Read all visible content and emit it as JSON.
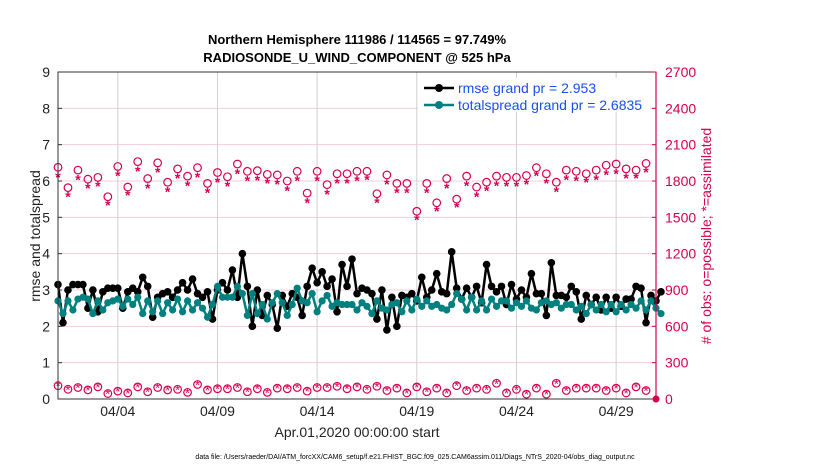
{
  "chart_data": {
    "type": "line",
    "title": [
      "Northern Hemisphere 111986 / 114565 = 97.749%",
      "RADIOSONDE_U_WIND_COMPONENT @ 525 hPa"
    ],
    "xlabel": "Apr.01,2020 00:00:00 start",
    "ylabel": "rmse and totalspread",
    "ylabel_right": "# of obs: o=possible; *=assimilated",
    "footer": "data file: /Users/raeder/DAI/ATM_forcXX/CAM6_setup/f.e21.FHIST_BGC.f09_025.CAM6assim.011/Diags_NTrS_2020-04/obs_diag_output.nc",
    "xlim": [
      0,
      30
    ],
    "ylim": [
      0,
      9
    ],
    "ylim_right": [
      0,
      2700
    ],
    "x_ticks": [
      3,
      8,
      13,
      18,
      23,
      28
    ],
    "x_tick_labels": [
      "04/04",
      "04/09",
      "04/14",
      "04/19",
      "04/24",
      "04/29"
    ],
    "y_ticks": [
      0,
      1,
      2,
      3,
      4,
      5,
      6,
      7,
      8,
      9
    ],
    "y_ticks_right": [
      0,
      300,
      600,
      900,
      1200,
      1500,
      1800,
      2100,
      2400,
      2700
    ],
    "legend_position": "top-right",
    "colors": {
      "rmse": "#000000",
      "spread": "#00807f",
      "obs": "#d6004f",
      "legend_text": "#1a4ff0",
      "grid_h": "#f4cddb",
      "grid_v": "#d0d0d0"
    },
    "series": [
      {
        "name": "rmse grand pr = 2.953",
        "axis": "left",
        "x_step_days": 0.25,
        "values": [
          3.15,
          2.1,
          3.0,
          3.15,
          3.15,
          3.15,
          2.5,
          3.0,
          2.4,
          2.95,
          3.05,
          3.05,
          3.05,
          2.5,
          2.95,
          3.05,
          2.95,
          3.35,
          3.1,
          2.25,
          2.8,
          2.9,
          2.95,
          2.8,
          3.0,
          3.2,
          3.0,
          3.3,
          2.9,
          2.8,
          2.95,
          2.2,
          3.0,
          3.2,
          3.0,
          3.55,
          2.8,
          4.0,
          3.1,
          2.0,
          3.0,
          2.3,
          2.85,
          2.6,
          1.95,
          2.85,
          2.55,
          2.9,
          2.8,
          2.3,
          3.1,
          3.6,
          3.2,
          3.5,
          3.1,
          3.3,
          2.4,
          3.7,
          3.1,
          3.85,
          2.9,
          3.05,
          3.0,
          2.9,
          2.2,
          3.0,
          1.9,
          2.8,
          2.0,
          2.85,
          2.8,
          2.9,
          2.7,
          3.35,
          2.8,
          3.0,
          3.45,
          2.95,
          2.9,
          4.05,
          3.05,
          2.75,
          3.05,
          2.8,
          3.1,
          2.65,
          3.7,
          3.1,
          2.95,
          3.1,
          2.6,
          3.15,
          2.75,
          3.0,
          2.8,
          3.45,
          2.9,
          2.9,
          2.3,
          3.75,
          2.85,
          2.85,
          2.8,
          3.1,
          2.95,
          2.2,
          2.85,
          2.6,
          2.8,
          2.45,
          2.8,
          2.5,
          2.8,
          2.55,
          2.75,
          2.75,
          3.1,
          3.05,
          2.1,
          2.85,
          2.7,
          2.95
        ]
      },
      {
        "name": "totalspread grand pr = 2.6835",
        "axis": "left",
        "x_step_days": 0.25,
        "values": [
          2.7,
          2.35,
          2.7,
          2.45,
          2.75,
          2.8,
          2.75,
          2.35,
          2.7,
          2.45,
          2.65,
          2.7,
          2.75,
          2.55,
          2.75,
          2.6,
          2.8,
          2.35,
          2.7,
          2.4,
          2.7,
          2.35,
          2.65,
          2.45,
          2.75,
          2.4,
          2.7,
          2.45,
          2.65,
          2.5,
          2.25,
          2.6,
          3.1,
          2.8,
          2.8,
          2.8,
          3.1,
          2.9,
          2.3,
          2.9,
          2.35,
          2.6,
          2.2,
          2.65,
          2.9,
          2.65,
          2.3,
          2.6,
          3.05,
          2.7,
          2.65,
          2.9,
          2.4,
          2.7,
          2.85,
          2.55,
          2.65,
          2.6,
          2.6,
          2.6,
          2.45,
          2.65,
          2.55,
          2.35,
          2.7,
          2.5,
          2.45,
          2.6,
          2.65,
          2.4,
          2.7,
          2.45,
          2.75,
          2.55,
          2.7,
          2.55,
          2.6,
          2.5,
          2.45,
          2.6,
          2.9,
          2.75,
          2.45,
          2.8,
          2.45,
          2.7,
          2.45,
          2.75,
          2.55,
          2.7,
          2.7,
          2.5,
          2.65,
          2.55,
          2.7,
          2.5,
          2.45,
          2.65,
          2.7,
          2.6,
          2.65,
          2.5,
          2.6,
          2.6,
          2.45,
          2.55,
          2.35,
          2.6,
          2.45,
          2.6,
          2.4,
          2.6,
          2.4,
          2.6,
          2.45,
          2.6,
          2.5,
          2.7,
          2.45,
          2.7,
          2.5,
          2.35
        ]
      },
      {
        "name": "obs possible",
        "axis": "right",
        "marker": "o",
        "x_step_days": 0.5,
        "values": [
          1913,
          1745,
          1890,
          1815,
          1830,
          1670,
          1920,
          1750,
          1960,
          1820,
          1950,
          1790,
          1900,
          1840,
          1910,
          1780,
          1870,
          1835,
          1940,
          1880,
          1885,
          1855,
          1850,
          1800,
          1880,
          1700,
          1880,
          1770,
          1860,
          1860,
          1880,
          1880,
          1695,
          1850,
          1780,
          1780,
          1550,
          1780,
          1620,
          1820,
          1650,
          1840,
          1750,
          1790,
          1840,
          1830,
          1830,
          1845,
          1910,
          1860,
          1790,
          1890,
          1880,
          1860,
          1890,
          1930,
          1940,
          1900,
          1890,
          1945
        ]
      },
      {
        "name": "obs assimilated",
        "axis": "right",
        "marker": "*",
        "x_step_days": 0.5,
        "values": [
          1850,
          1690,
          1830,
          1760,
          1775,
          1620,
          1860,
          1700,
          1900,
          1760,
          1890,
          1730,
          1840,
          1780,
          1850,
          1720,
          1810,
          1775,
          1880,
          1820,
          1825,
          1800,
          1790,
          1740,
          1820,
          1640,
          1820,
          1710,
          1800,
          1800,
          1820,
          1830,
          1640,
          1790,
          1720,
          1720,
          1500,
          1720,
          1570,
          1760,
          1600,
          1780,
          1690,
          1740,
          1780,
          1775,
          1775,
          1790,
          1860,
          1800,
          1730,
          1830,
          1820,
          1810,
          1830,
          1870,
          1880,
          1840,
          1840,
          1890
        ]
      },
      {
        "name": "obs possible (low level)",
        "axis": "right",
        "marker": "o",
        "x_step_days": 0.5,
        "values": [
          110,
          80,
          95,
          75,
          100,
          45,
          65,
          50,
          100,
          60,
          95,
          75,
          80,
          55,
          120,
          75,
          85,
          85,
          95,
          60,
          85,
          55,
          90,
          85,
          95,
          65,
          95,
          95,
          105,
          85,
          100,
          80,
          105,
          70,
          90,
          50,
          100,
          60,
          90,
          50,
          110,
          70,
          90,
          80,
          130,
          50,
          80,
          40,
          90,
          40,
          130,
          70,
          90,
          90,
          90,
          70,
          90,
          50,
          100,
          70
        ]
      }
    ]
  }
}
